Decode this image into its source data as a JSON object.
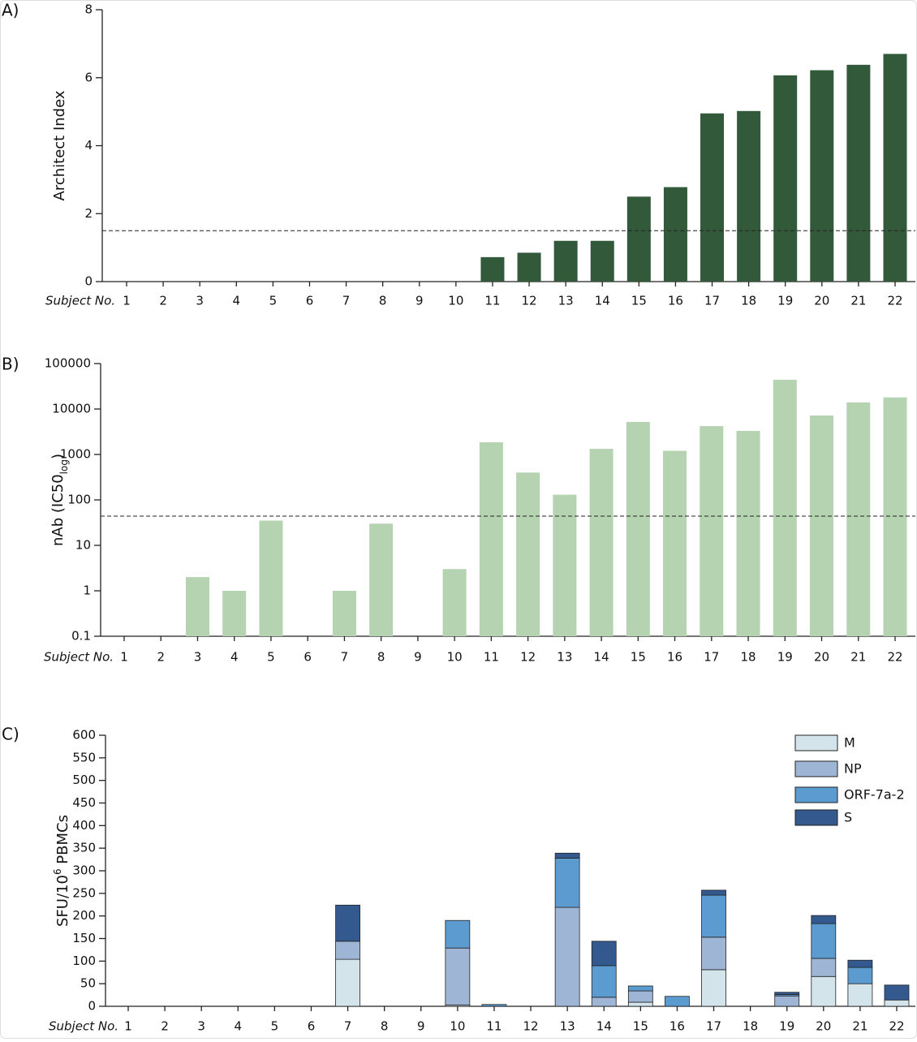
{
  "chart_data": [
    {
      "type": "bar",
      "panel_label": "A)",
      "y_label": "Architect Index",
      "x_label": "Subject No.",
      "categories": [
        "1",
        "2",
        "3",
        "4",
        "5",
        "6",
        "7",
        "8",
        "9",
        "10",
        "11",
        "12",
        "13",
        "14",
        "15",
        "16",
        "17",
        "18",
        "19",
        "20",
        "21",
        "22"
      ],
      "values": [
        0,
        0,
        0,
        0,
        0,
        0,
        0,
        0,
        0,
        0,
        0.72,
        0.85,
        1.2,
        1.2,
        2.5,
        2.78,
        4.95,
        5.02,
        6.07,
        6.22,
        6.38,
        6.7
      ],
      "color": "#32593a",
      "ylim": [
        0,
        8
      ],
      "yticks": [
        0,
        2,
        4,
        6,
        8
      ],
      "ref_line": 1.5
    },
    {
      "type": "bar",
      "panel_label": "B)",
      "y_label": "nAb (IC50",
      "y_label_sub": "log",
      "y_label_end": ")",
      "x_label": "Subject No.",
      "categories": [
        "1",
        "2",
        "3",
        "4",
        "5",
        "6",
        "7",
        "8",
        "9",
        "10",
        "11",
        "12",
        "13",
        "14",
        "15",
        "16",
        "17",
        "18",
        "19",
        "20",
        "21",
        "22"
      ],
      "values": [
        null,
        null,
        2,
        1,
        35,
        null,
        1,
        30,
        null,
        3,
        1850,
        400,
        130,
        1330,
        5200,
        1200,
        4200,
        3300,
        44000,
        7200,
        14000,
        18000
      ],
      "color": "#b5d2b1",
      "log_scale": true,
      "ylim": [
        0.1,
        100000
      ],
      "yticks": [
        0.1,
        1,
        10,
        100,
        1000,
        10000,
        100000
      ],
      "ref_line": 44
    },
    {
      "type": "stacked_bar",
      "panel_label": "C)",
      "y_label": "SFU/10",
      "y_label_sup": "6",
      "y_label_end": " PBMCs",
      "x_label": "Subject No.",
      "categories": [
        "1",
        "2",
        "3",
        "4",
        "5",
        "6",
        "7",
        "8",
        "9",
        "10",
        "11",
        "12",
        "13",
        "14",
        "15",
        "16",
        "17",
        "18",
        "19",
        "20",
        "21",
        "22"
      ],
      "series": [
        {
          "name": "M",
          "color": "#d3e4ea",
          "values": [
            0,
            0,
            0,
            0,
            0,
            0,
            104,
            0,
            0,
            3,
            0,
            0,
            0,
            0,
            9,
            0,
            81,
            0,
            0,
            66,
            50,
            14
          ]
        },
        {
          "name": "NP",
          "color": "#9fb5d6",
          "values": [
            0,
            0,
            0,
            0,
            0,
            0,
            40,
            0,
            0,
            126,
            0,
            0,
            219,
            20,
            25,
            0,
            72,
            0,
            23,
            40,
            0,
            0
          ]
        },
        {
          "name": "ORF-7a-2",
          "color": "#5b9bd0",
          "values": [
            0,
            0,
            0,
            0,
            0,
            0,
            0,
            0,
            0,
            61,
            4,
            0,
            109,
            70,
            11,
            22,
            93,
            0,
            3,
            77,
            36,
            0
          ]
        },
        {
          "name": "S",
          "color": "#34598e",
          "values": [
            0,
            0,
            0,
            0,
            0,
            0,
            80,
            0,
            0,
            0,
            0,
            0,
            11,
            54,
            0,
            0,
            11,
            0,
            5,
            18,
            16,
            33
          ]
        }
      ],
      "ylim": [
        0,
        600
      ],
      "yticks": [
        0,
        50,
        100,
        150,
        200,
        250,
        300,
        350,
        400,
        450,
        500,
        550,
        600
      ],
      "legend": "top-right"
    }
  ]
}
